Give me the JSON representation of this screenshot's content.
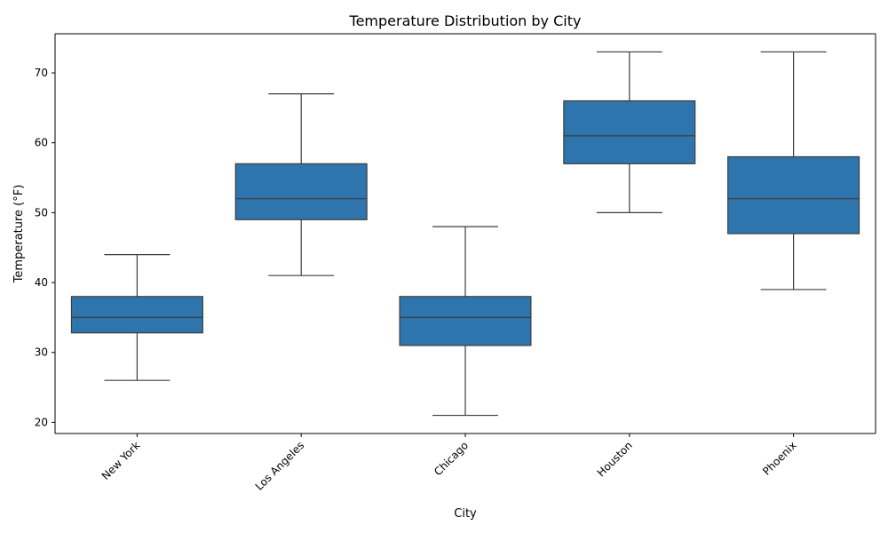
{
  "chart_data": {
    "type": "box",
    "title": "Temperature Distribution by City",
    "xlabel": "City",
    "ylabel": "Temperature (°F)",
    "ylim": [
      18.4,
      75.6
    ],
    "yticks": [
      20,
      30,
      40,
      50,
      60,
      70
    ],
    "box_color": "#2e75ad",
    "line_color": "#3d3d3d",
    "categories": [
      "New York",
      "Los Angeles",
      "Chicago",
      "Houston",
      "Phoenix"
    ],
    "boxes": [
      {
        "name": "New York",
        "min": 26,
        "q1": 32.8,
        "median": 35,
        "q3": 38,
        "max": 44
      },
      {
        "name": "Los Angeles",
        "min": 41,
        "q1": 49,
        "median": 52,
        "q3": 57,
        "max": 67
      },
      {
        "name": "Chicago",
        "min": 21,
        "q1": 31,
        "median": 35,
        "q3": 38,
        "max": 48
      },
      {
        "name": "Houston",
        "min": 50,
        "q1": 57,
        "median": 61,
        "q3": 66,
        "max": 73
      },
      {
        "name": "Phoenix",
        "min": 39,
        "q1": 47,
        "median": 52,
        "q3": 58,
        "max": 73
      }
    ]
  }
}
